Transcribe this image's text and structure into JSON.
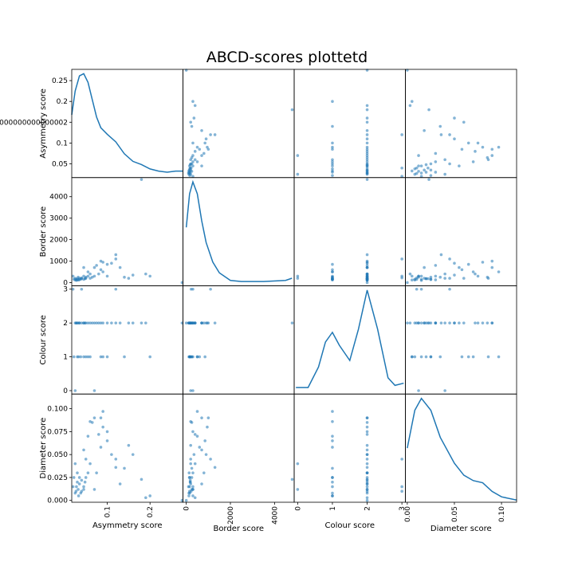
{
  "chart_data": {
    "type": "scatter_matrix",
    "title": "ABCD-scores plottetd",
    "color": "#1f77b4",
    "variables": [
      {
        "name": "Asymmetry score",
        "lim": [
          0.017,
          0.277
        ],
        "xticks": [
          0.1,
          0.2
        ],
        "yticks": [
          0.05,
          0.1,
          {
            "value": 0.15,
            "label": "0.15000000000000002"
          },
          0.2,
          0.25
        ],
        "values": [
          0.275,
          0.18,
          0.2,
          0.19,
          0.13,
          0.12,
          0.12,
          0.11,
          0.1,
          0.1,
          0.09,
          0.09,
          0.085,
          0.08,
          0.075,
          0.07,
          0.07,
          0.065,
          0.06,
          0.06,
          0.055,
          0.05,
          0.05,
          0.048,
          0.045,
          0.045,
          0.04,
          0.04,
          0.038,
          0.035,
          0.035,
          0.033,
          0.032,
          0.03,
          0.03,
          0.028,
          0.027,
          0.025,
          0.025,
          0.022,
          0.02,
          0.15,
          0.14,
          0.16,
          0.085,
          0.055,
          0.045
        ],
        "kde_x": [
          0.017,
          0.025,
          0.035,
          0.045,
          0.055,
          0.065,
          0.075,
          0.085,
          0.1,
          0.12,
          0.14,
          0.16,
          0.18,
          0.2,
          0.22,
          0.24,
          0.26,
          0.277
        ],
        "kde_y": [
          0.58,
          0.8,
          0.94,
          0.96,
          0.88,
          0.72,
          0.56,
          0.46,
          0.4,
          0.33,
          0.22,
          0.15,
          0.12,
          0.08,
          0.06,
          0.05,
          0.06,
          0.06
        ]
      },
      {
        "name": "Border score",
        "lim": [
          -150,
          4890
        ],
        "xticks": [
          0,
          2000,
          4000
        ],
        "yticks": [
          0,
          1000,
          2000,
          3000,
          4000
        ],
        "values": [
          0,
          4800,
          300,
          400,
          700,
          1300,
          1100,
          900,
          850,
          300,
          500,
          950,
          600,
          400,
          800,
          300,
          700,
          250,
          200,
          400,
          300,
          250,
          200,
          180,
          150,
          300,
          220,
          180,
          160,
          140,
          200,
          120,
          250,
          130,
          180,
          100,
          150,
          200,
          120,
          160,
          300,
          200,
          250,
          350,
          1000,
          500,
          700
        ],
        "kde_x": [
          0,
          150,
          300,
          500,
          700,
          900,
          1200,
          1500,
          2000,
          2500,
          3500,
          4500,
          4790
        ],
        "kde_y": [
          0.54,
          0.85,
          0.96,
          0.85,
          0.6,
          0.4,
          0.22,
          0.12,
          0.05,
          0.04,
          0.04,
          0.05,
          0.07
        ]
      },
      {
        "name": "Colour score",
        "lim": [
          -0.1,
          3.1
        ],
        "xticks": [
          0,
          1,
          2,
          3
        ],
        "yticks": [
          0,
          1,
          2,
          3
        ],
        "values": [
          2,
          2,
          1,
          2,
          2,
          2,
          3,
          2,
          1,
          2,
          1,
          2,
          1,
          2,
          2,
          0,
          2,
          2,
          1,
          2,
          2,
          1,
          2,
          2,
          1,
          2,
          3,
          2,
          1,
          2,
          2,
          1,
          2,
          2,
          1,
          2,
          2,
          0,
          2,
          1,
          3,
          2,
          1,
          2,
          2,
          1,
          2
        ],
        "kde_x": [
          -0.05,
          0.3,
          0.6,
          0.8,
          1,
          1.2,
          1.5,
          1.75,
          2,
          2.3,
          2.6,
          2.8,
          3.05
        ],
        "kde_y": [
          0.06,
          0.06,
          0.25,
          0.48,
          0.57,
          0.45,
          0.31,
          0.6,
          0.96,
          0.6,
          0.15,
          0.08,
          0.1
        ]
      },
      {
        "name": "Diameter score",
        "lim": [
          -0.002,
          0.116
        ],
        "xticks": [
          {
            "value": 0,
            "label": "0.00"
          },
          {
            "value": 0.05,
            "label": "0.05"
          },
          {
            "value": 0.1,
            "label": "0.10"
          }
        ],
        "yticks": [
          {
            "value": 0,
            "label": "0.000"
          },
          {
            "value": 0.025,
            "label": "0.025"
          },
          {
            "value": 0.05,
            "label": "0.050"
          },
          {
            "value": 0.075,
            "label": "0.075"
          },
          {
            "value": 0.1,
            "label": "0.100"
          }
        ],
        "values": [
          0,
          0.023,
          0.005,
          0.003,
          0.018,
          0.036,
          0.045,
          0.05,
          0.065,
          0.075,
          0.097,
          0.08,
          0.058,
          0.072,
          0.03,
          0.012,
          0.09,
          0.085,
          0.086,
          0.04,
          0.03,
          0.025,
          0.045,
          0.02,
          0.015,
          0.012,
          0.01,
          0.022,
          0.008,
          0.025,
          0.018,
          0.005,
          0.012,
          0.03,
          0.02,
          0.015,
          0.01,
          0.04,
          0.008,
          0.025,
          0.015,
          0.06,
          0.035,
          0.05,
          0.09,
          0.07,
          0.055
        ],
        "kde_x": [
          0,
          0.008,
          0.015,
          0.025,
          0.035,
          0.05,
          0.06,
          0.07,
          0.08,
          0.09,
          0.1,
          0.116
        ],
        "kde_y": [
          0.5,
          0.85,
          0.96,
          0.85,
          0.6,
          0.36,
          0.25,
          0.2,
          0.18,
          0.1,
          0.05,
          0.02
        ]
      }
    ]
  }
}
